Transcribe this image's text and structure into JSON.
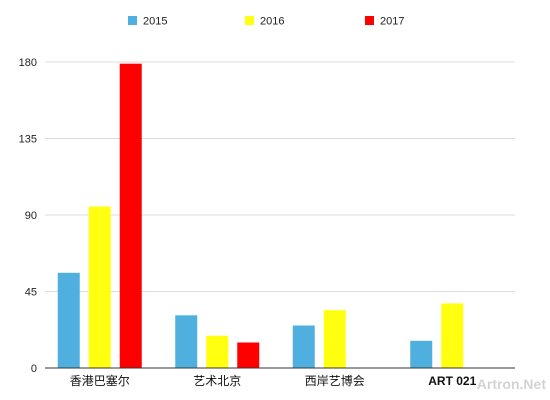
{
  "chart_data": {
    "type": "bar",
    "categories": [
      "香港巴塞尔",
      "艺术北京",
      "西岸艺博会",
      "ART 021"
    ],
    "series": [
      {
        "name": "2015",
        "color": "#4fb0e0",
        "values": [
          56,
          31,
          25,
          16
        ]
      },
      {
        "name": "2016",
        "color": "#ffff0f",
        "values": [
          95,
          19,
          34,
          38
        ]
      },
      {
        "name": "2017",
        "color": "#ff0000",
        "values": [
          179,
          15,
          null,
          null
        ]
      }
    ],
    "yticks": [
      0,
      45,
      90,
      135,
      180
    ],
    "ylim": [
      0,
      180
    ],
    "grid": true,
    "legend_position": "top",
    "watermark": "Artron.Net"
  }
}
